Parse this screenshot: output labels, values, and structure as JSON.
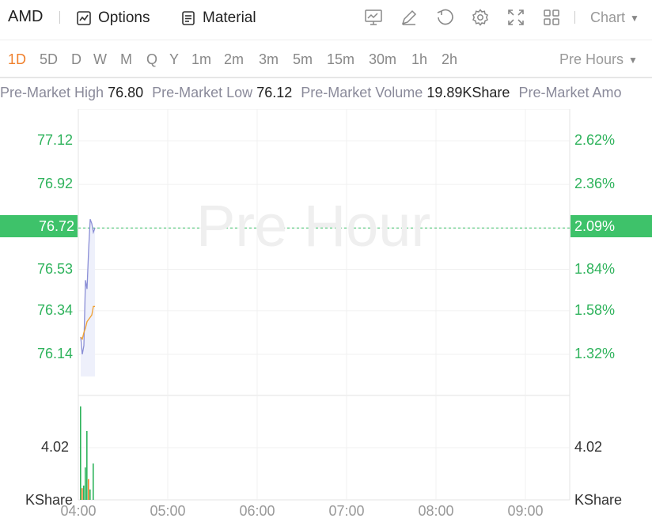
{
  "header": {
    "ticker": "AMD",
    "options_label": "Options",
    "material_label": "Material",
    "chart_type_label": "Chart"
  },
  "periods": [
    "1D",
    "5D",
    "D",
    "W",
    "M",
    "Q",
    "Y",
    "1m",
    "2m",
    "3m",
    "5m",
    "15m",
    "30m",
    "1h",
    "2h"
  ],
  "active_period": "1D",
  "session_label": "Pre Hours",
  "stats": {
    "high_label": "Pre-Market High",
    "high_value": "76.80",
    "low_label": "Pre-Market Low",
    "low_value": "76.12",
    "volume_label": "Pre-Market Volume",
    "volume_value": "19.89KShare",
    "amount_label": "Pre-Market Amo"
  },
  "watermark": "Pre Hour",
  "colors": {
    "up": "#2fb35c",
    "accent": "#f0802c",
    "price_line": "#8b8fd6",
    "avg_line": "#f0a030"
  },
  "chart_data": {
    "type": "line",
    "price_axis_left": [
      "77.12",
      "76.92",
      "76.72",
      "76.53",
      "76.34",
      "76.14"
    ],
    "percent_axis_right": [
      "2.62%",
      "2.36%",
      "2.09%",
      "1.84%",
      "1.58%",
      "1.32%"
    ],
    "current_price": "76.72",
    "current_percent": "2.09%",
    "ylim": [
      76.0,
      77.25
    ],
    "volume_axis_label": "4.02",
    "volume_unit": "KShare",
    "x_labels": [
      "04:00",
      "05:00",
      "06:00",
      "07:00",
      "08:00",
      "09:00"
    ],
    "series": [
      {
        "values": [
          {
            "t": 0,
            "y": 76.22
          },
          {
            "t": 1,
            "y": 76.14
          },
          {
            "t": 2,
            "y": 76.18
          },
          {
            "t": 3,
            "y": 76.48
          },
          {
            "t": 4,
            "y": 76.44
          },
          {
            "t": 5,
            "y": 76.62
          },
          {
            "t": 6,
            "y": 76.76
          },
          {
            "t": 7,
            "y": 76.74
          },
          {
            "t": 8,
            "y": 76.7
          },
          {
            "t": 9,
            "y": 76.72
          }
        ]
      },
      {
        "values": [
          {
            "t": 0,
            "y": 76.22
          },
          {
            "t": 1,
            "y": 76.21
          },
          {
            "t": 2,
            "y": 76.24
          },
          {
            "t": 3,
            "y": 76.26
          },
          {
            "t": 4,
            "y": 76.29
          },
          {
            "t": 5,
            "y": 76.3
          },
          {
            "t": 6,
            "y": 76.31
          },
          {
            "t": 7,
            "y": 76.32
          },
          {
            "t": 8,
            "y": 76.36
          },
          {
            "t": 9,
            "y": 76.36
          }
        ]
      }
    ],
    "volume": [
      {
        "t": 0,
        "v": 7.2,
        "up": true
      },
      {
        "t": 1,
        "v": 0.9,
        "up": false
      },
      {
        "t": 2,
        "v": 1.1,
        "up": true
      },
      {
        "t": 3,
        "v": 2.5,
        "up": true
      },
      {
        "t": 4,
        "v": 5.3,
        "up": true
      },
      {
        "t": 5,
        "v": 1.6,
        "up": false
      },
      {
        "t": 6,
        "v": 0.8,
        "up": true
      },
      {
        "t": 8,
        "v": 2.8,
        "up": true
      }
    ]
  }
}
